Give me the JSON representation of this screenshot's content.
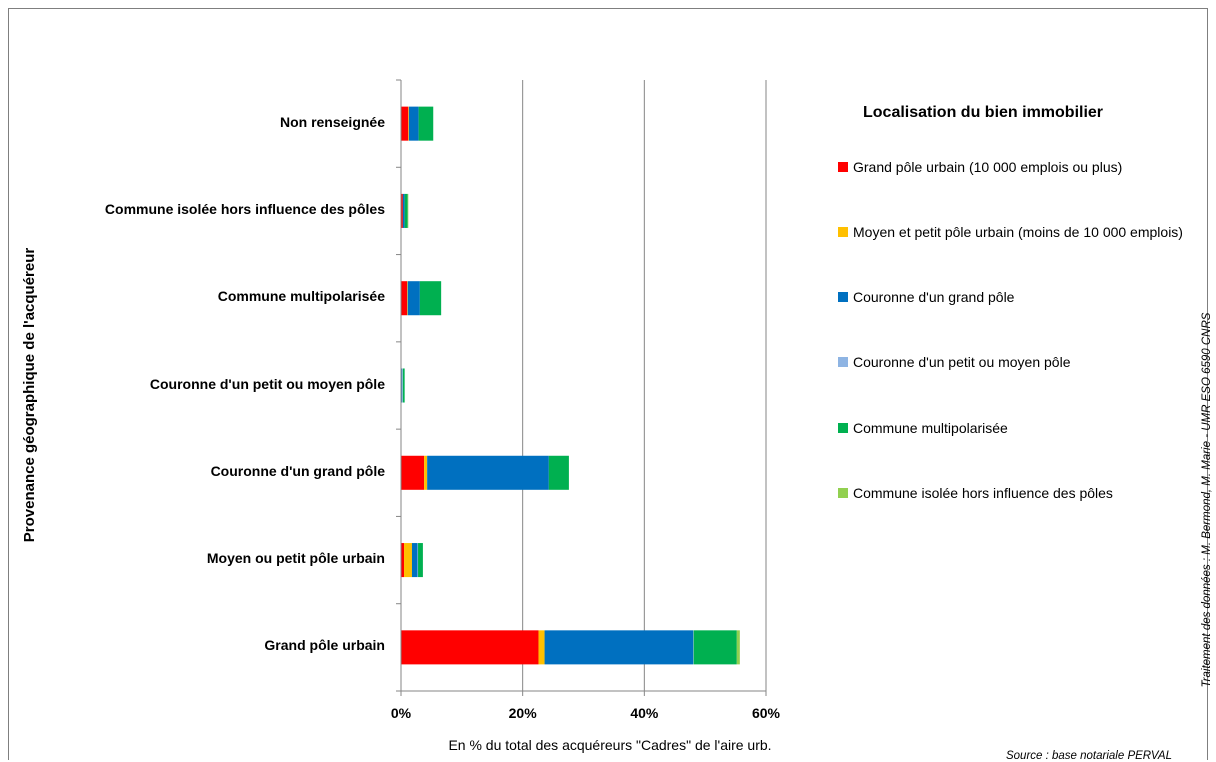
{
  "chart_data": {
    "type": "bar",
    "orientation": "horizontal",
    "stacked": true,
    "categories": [
      "Non renseignée",
      "Commune isolée hors influence des pôles",
      "Commune multipolarisée",
      "Couronne d'un petit ou moyen pôle",
      "Couronne d'un grand pôle",
      "Moyen ou petit pôle urbain",
      "Grand pôle urbain"
    ],
    "series": [
      {
        "name": "Grand pôle urbain (10 000 emplois ou plus)",
        "color": "#ff0000",
        "values": [
          1.2,
          0.3,
          1.0,
          0.1,
          3.8,
          0.5,
          22.6
        ]
      },
      {
        "name": "Moyen et petit pôle urbain (moins de 10 000 emplois)",
        "color": "#ffc000",
        "values": [
          0.1,
          0.0,
          0.1,
          0.0,
          0.5,
          1.3,
          1.0
        ]
      },
      {
        "name": "Couronne d'un grand pôle",
        "color": "#0070c0",
        "values": [
          1.6,
          0.3,
          2.0,
          0.1,
          20.0,
          0.9,
          24.4
        ]
      },
      {
        "name": "Couronne d'un petit ou moyen pôle",
        "color": "#8eb4e3",
        "values": [
          0.0,
          0.0,
          0.0,
          0.1,
          0.0,
          0.1,
          0.1
        ]
      },
      {
        "name": "Commune multipolarisée",
        "color": "#00b050",
        "values": [
          2.4,
          0.5,
          3.5,
          0.3,
          3.3,
          0.8,
          7.1
        ]
      },
      {
        "name": "Commune isolée hors influence des pôles",
        "color": "#92d050",
        "values": [
          0.0,
          0.1,
          0.0,
          0.0,
          0.0,
          0.0,
          0.5
        ]
      }
    ],
    "xlim": [
      0,
      60
    ],
    "ticks": [
      "0%",
      "20%",
      "40%",
      "60%"
    ],
    "tick_values": [
      0,
      20,
      40,
      60
    ],
    "xlabel": "En % du total des acquéreurs \"Cadres\" de l'aire urb.",
    "ylabel": "Provenance géographique de l'acquéreur",
    "legend_title": "Localisation du bien immobilier",
    "legend_position": "right",
    "grid": true
  },
  "credit": "Traitement des données : M. Bermond, M. Marie - UMR ESO 6590 CNRS",
  "source": "Source : base notariale PERVAL"
}
